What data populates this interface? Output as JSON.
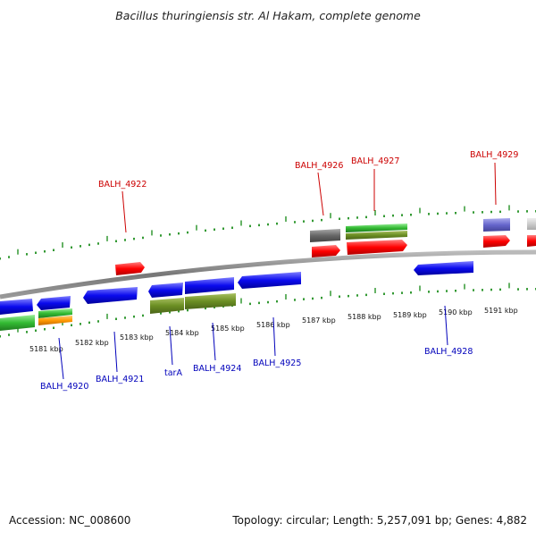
{
  "title": "Bacillus thuringiensis str. Al Hakam, complete genome",
  "footer": {
    "accession": "Accession: NC_008600",
    "topology": "Topology: circular; Length: 5,257,091 bp; Genes: 4,882"
  },
  "colors": {
    "backbone": "#888888",
    "tick": "#339933",
    "label_red": "#cc0000",
    "label_blue": "#0000bb",
    "red": "#ff0000",
    "blue": "#0a0aee",
    "green": "#33bb33",
    "olive": "#6b8e23",
    "orange": "#ff9900",
    "grey": "#666666",
    "purple": "#6666cc",
    "light_grey": "#cccccc"
  },
  "scale_labels": [
    "5181 kbp",
    "5182 kbp",
    "5183 kbp",
    "5184 kbp",
    "5185 kbp",
    "5186 kbp",
    "5187 kbp",
    "5188 kbp",
    "5189 kbp",
    "5190 kbp",
    "5191 kbp"
  ],
  "gene_labels_top": [
    "BALH_4922",
    "BALH_4926",
    "BALH_4927",
    "BALH_4929"
  ],
  "gene_labels_bottom": [
    "BALH_4920",
    "BALH_4921",
    "tarA",
    "BALH_4924",
    "BALH_4925",
    "BALH_4928"
  ]
}
